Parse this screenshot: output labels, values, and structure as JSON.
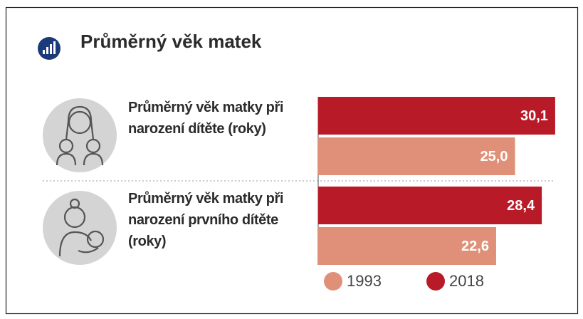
{
  "chart_data": {
    "type": "bar",
    "orientation": "horizontal",
    "title": "Průměrný věk matek",
    "categories": [
      "Průměrný věk matky při narození dítěte (roky)",
      "Průměrný věk matky při narození prvního dítěte (roky)"
    ],
    "series": [
      {
        "name": "1993",
        "color": "#e09078",
        "values": [
          25.0,
          22.6
        ],
        "value_labels": [
          "25,0",
          "22,6"
        ]
      },
      {
        "name": "2018",
        "color": "#b91a27",
        "values": [
          30.1,
          28.4
        ],
        "value_labels": [
          "30,1",
          "28,4"
        ]
      }
    ]
  }
}
